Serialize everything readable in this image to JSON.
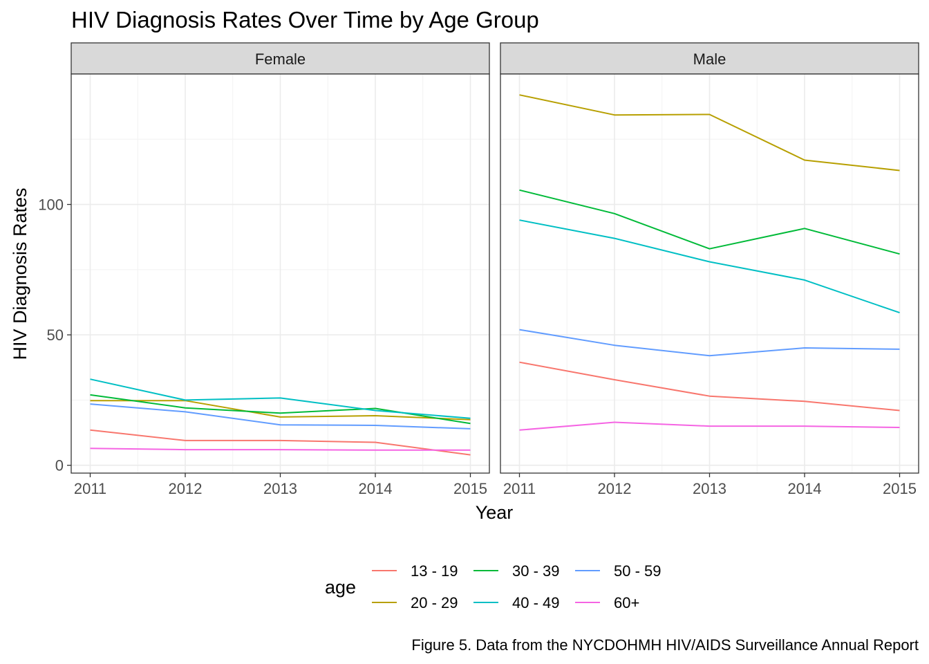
{
  "chart_data": {
    "type": "line",
    "title": "HIV Diagnosis Rates Over Time by Age Group",
    "xlabel": "Year",
    "ylabel": "HIV Diagnosis Rates",
    "x": [
      2011,
      2012,
      2013,
      2014,
      2015
    ],
    "x_ticks": [
      "2011",
      "2012",
      "2013",
      "2014",
      "2015"
    ],
    "y_ticks": [
      "0",
      "50",
      "100"
    ],
    "ylim": [
      -3,
      150
    ],
    "grid": true,
    "legend": {
      "title": "age",
      "placement": "bottom",
      "items": [
        {
          "label": "13 - 19",
          "color": "#F8766D"
        },
        {
          "label": "20 - 29",
          "color": "#B79F00"
        },
        {
          "label": "30 - 39",
          "color": "#00BA38"
        },
        {
          "label": "40 - 49",
          "color": "#00BFC4"
        },
        {
          "label": "50 - 59",
          "color": "#619CFF"
        },
        {
          "label": "60+",
          "color": "#F564E3"
        }
      ]
    },
    "panels": [
      {
        "label": "Female",
        "series": [
          {
            "name": "13 - 19",
            "color": "#F8766D",
            "values": [
              13.5,
              9.5,
              9.5,
              8.8,
              4.0
            ]
          },
          {
            "name": "20 - 29",
            "color": "#B79F00",
            "values": [
              24.8,
              24.8,
              18.5,
              19.0,
              17.5
            ]
          },
          {
            "name": "30 - 39",
            "color": "#00BA38",
            "values": [
              27.0,
              22.0,
              20.0,
              21.8,
              16.0
            ]
          },
          {
            "name": "40 - 49",
            "color": "#00BFC4",
            "values": [
              33.0,
              25.0,
              25.8,
              21.0,
              18.0
            ]
          },
          {
            "name": "50 - 59",
            "color": "#619CFF",
            "values": [
              23.5,
              20.5,
              15.5,
              15.3,
              14.0
            ]
          },
          {
            "name": "60+",
            "color": "#F564E3",
            "values": [
              6.5,
              6.0,
              6.0,
              5.8,
              5.8
            ]
          }
        ]
      },
      {
        "label": "Male",
        "series": [
          {
            "name": "13 - 19",
            "color": "#F8766D",
            "values": [
              39.5,
              32.8,
              26.5,
              24.5,
              21.0
            ]
          },
          {
            "name": "20 - 29",
            "color": "#B79F00",
            "values": [
              142.0,
              134.3,
              134.5,
              117.0,
              113.0
            ]
          },
          {
            "name": "30 - 39",
            "color": "#00BA38",
            "values": [
              105.5,
              96.5,
              83.0,
              90.8,
              81.0
            ]
          },
          {
            "name": "40 - 49",
            "color": "#00BFC4",
            "values": [
              94.0,
              87.0,
              78.0,
              71.0,
              58.5
            ]
          },
          {
            "name": "50 - 59",
            "color": "#619CFF",
            "values": [
              52.0,
              46.0,
              42.0,
              45.0,
              44.5
            ]
          },
          {
            "name": "60+",
            "color": "#F564E3",
            "values": [
              13.5,
              16.5,
              15.0,
              15.0,
              14.5
            ]
          }
        ]
      }
    ],
    "caption": "Figure 5. Data from the NYCDOHMH HIV/AIDS Surveillance Annual Report"
  }
}
